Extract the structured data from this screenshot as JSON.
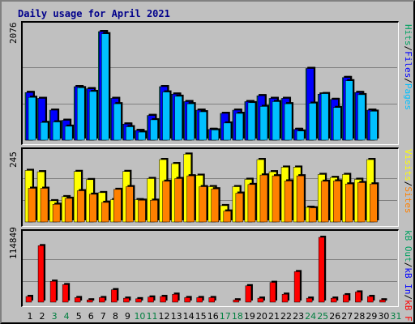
{
  "title": "Daily usage for April 2021",
  "colors": {
    "pages": "#00c0ff",
    "files": "#0000ff",
    "hits": "#00a060",
    "sites": "#ff8000",
    "visits": "#ffff00",
    "kbin": "#0000ff",
    "kbout": "#00a060",
    "kbf": "#ff0000",
    "weekend_day": "#007f3f"
  },
  "chart_data": [
    {
      "type": "bar",
      "ymax_label": "2076",
      "legend": [
        "Pages",
        "Files",
        "Hits"
      ],
      "categories": [
        "1",
        "2",
        "3",
        "4",
        "5",
        "6",
        "7",
        "8",
        "9",
        "10",
        "11",
        "12",
        "13",
        "14",
        "15",
        "16",
        "17",
        "18",
        "19",
        "20",
        "21",
        "22",
        "23",
        "24",
        "25",
        "26",
        "27",
        "28",
        "29",
        "30",
        "31"
      ],
      "ylim": [
        0,
        2076
      ],
      "series": [
        {
          "name": "Hits",
          "values": [
            890,
            780,
            560,
            370,
            1000,
            960,
            2030,
            780,
            300,
            180,
            460,
            1000,
            860,
            720,
            560,
            200,
            500,
            560,
            720,
            830,
            780,
            780,
            200,
            1340,
            860,
            760,
            1170,
            890,
            560,
            0,
            0
          ]
        },
        {
          "name": "Files",
          "values": [
            890,
            780,
            560,
            370,
            1000,
            960,
            2030,
            780,
            300,
            180,
            460,
            1000,
            860,
            720,
            560,
            200,
            500,
            560,
            720,
            830,
            780,
            780,
            200,
            1340,
            860,
            760,
            1170,
            890,
            560,
            0,
            0
          ]
        },
        {
          "name": "Pages",
          "values": [
            800,
            330,
            340,
            260,
            980,
            910,
            1990,
            680,
            250,
            150,
            380,
            900,
            820,
            680,
            530,
            190,
            320,
            500,
            700,
            630,
            720,
            680,
            170,
            690,
            870,
            610,
            1110,
            850,
            540,
            0,
            0
          ]
        }
      ]
    },
    {
      "type": "bar",
      "ymax_label": "245",
      "legend": [
        "Sites",
        "Visits"
      ],
      "categories": [
        "1",
        "2",
        "3",
        "4",
        "5",
        "6",
        "7",
        "8",
        "9",
        "10",
        "11",
        "12",
        "13",
        "14",
        "15",
        "16",
        "17",
        "18",
        "19",
        "20",
        "21",
        "22",
        "23",
        "24",
        "25",
        "26",
        "27",
        "28",
        "29",
        "30",
        "31"
      ],
      "ylim": [
        0,
        245
      ],
      "series": [
        {
          "name": "Visits",
          "values": [
            190,
            185,
            78,
            93,
            186,
            156,
            108,
            82,
            186,
            82,
            160,
            230,
            215,
            250,
            172,
            130,
            60,
            130,
            157,
            230,
            185,
            202,
            202,
            54,
            175,
            164,
            175,
            157,
            230,
            0,
            0
          ]
        },
        {
          "name": "Sites",
          "values": [
            124,
            124,
            65,
            87,
            115,
            102,
            72,
            120,
            130,
            80,
            80,
            150,
            160,
            170,
            130,
            122,
            40,
            106,
            138,
            173,
            170,
            151,
            170,
            52,
            150,
            151,
            140,
            145,
            140,
            0,
            0
          ]
        }
      ]
    },
    {
      "type": "bar",
      "ymax_label": "114849",
      "legend": [
        "kB F",
        "kB In",
        "kB Out"
      ],
      "categories": [
        "1",
        "2",
        "3",
        "4",
        "5",
        "6",
        "7",
        "8",
        "9",
        "10",
        "11",
        "12",
        "13",
        "14",
        "15",
        "16",
        "17",
        "18",
        "19",
        "20",
        "21",
        "22",
        "23",
        "24",
        "25",
        "26",
        "27",
        "28",
        "29",
        "30",
        "31"
      ],
      "ylim": [
        0,
        114849
      ],
      "series": [
        {
          "name": "kB F",
          "values": [
            10000,
            100000,
            37000,
            31000,
            8000,
            4000,
            8000,
            22000,
            7000,
            6000,
            9000,
            10000,
            14000,
            8000,
            8000,
            8000,
            0,
            4000,
            29000,
            7000,
            35000,
            14000,
            54000,
            7000,
            114849,
            7000,
            13000,
            18000,
            10000,
            4000,
            0
          ]
        }
      ]
    }
  ]
}
